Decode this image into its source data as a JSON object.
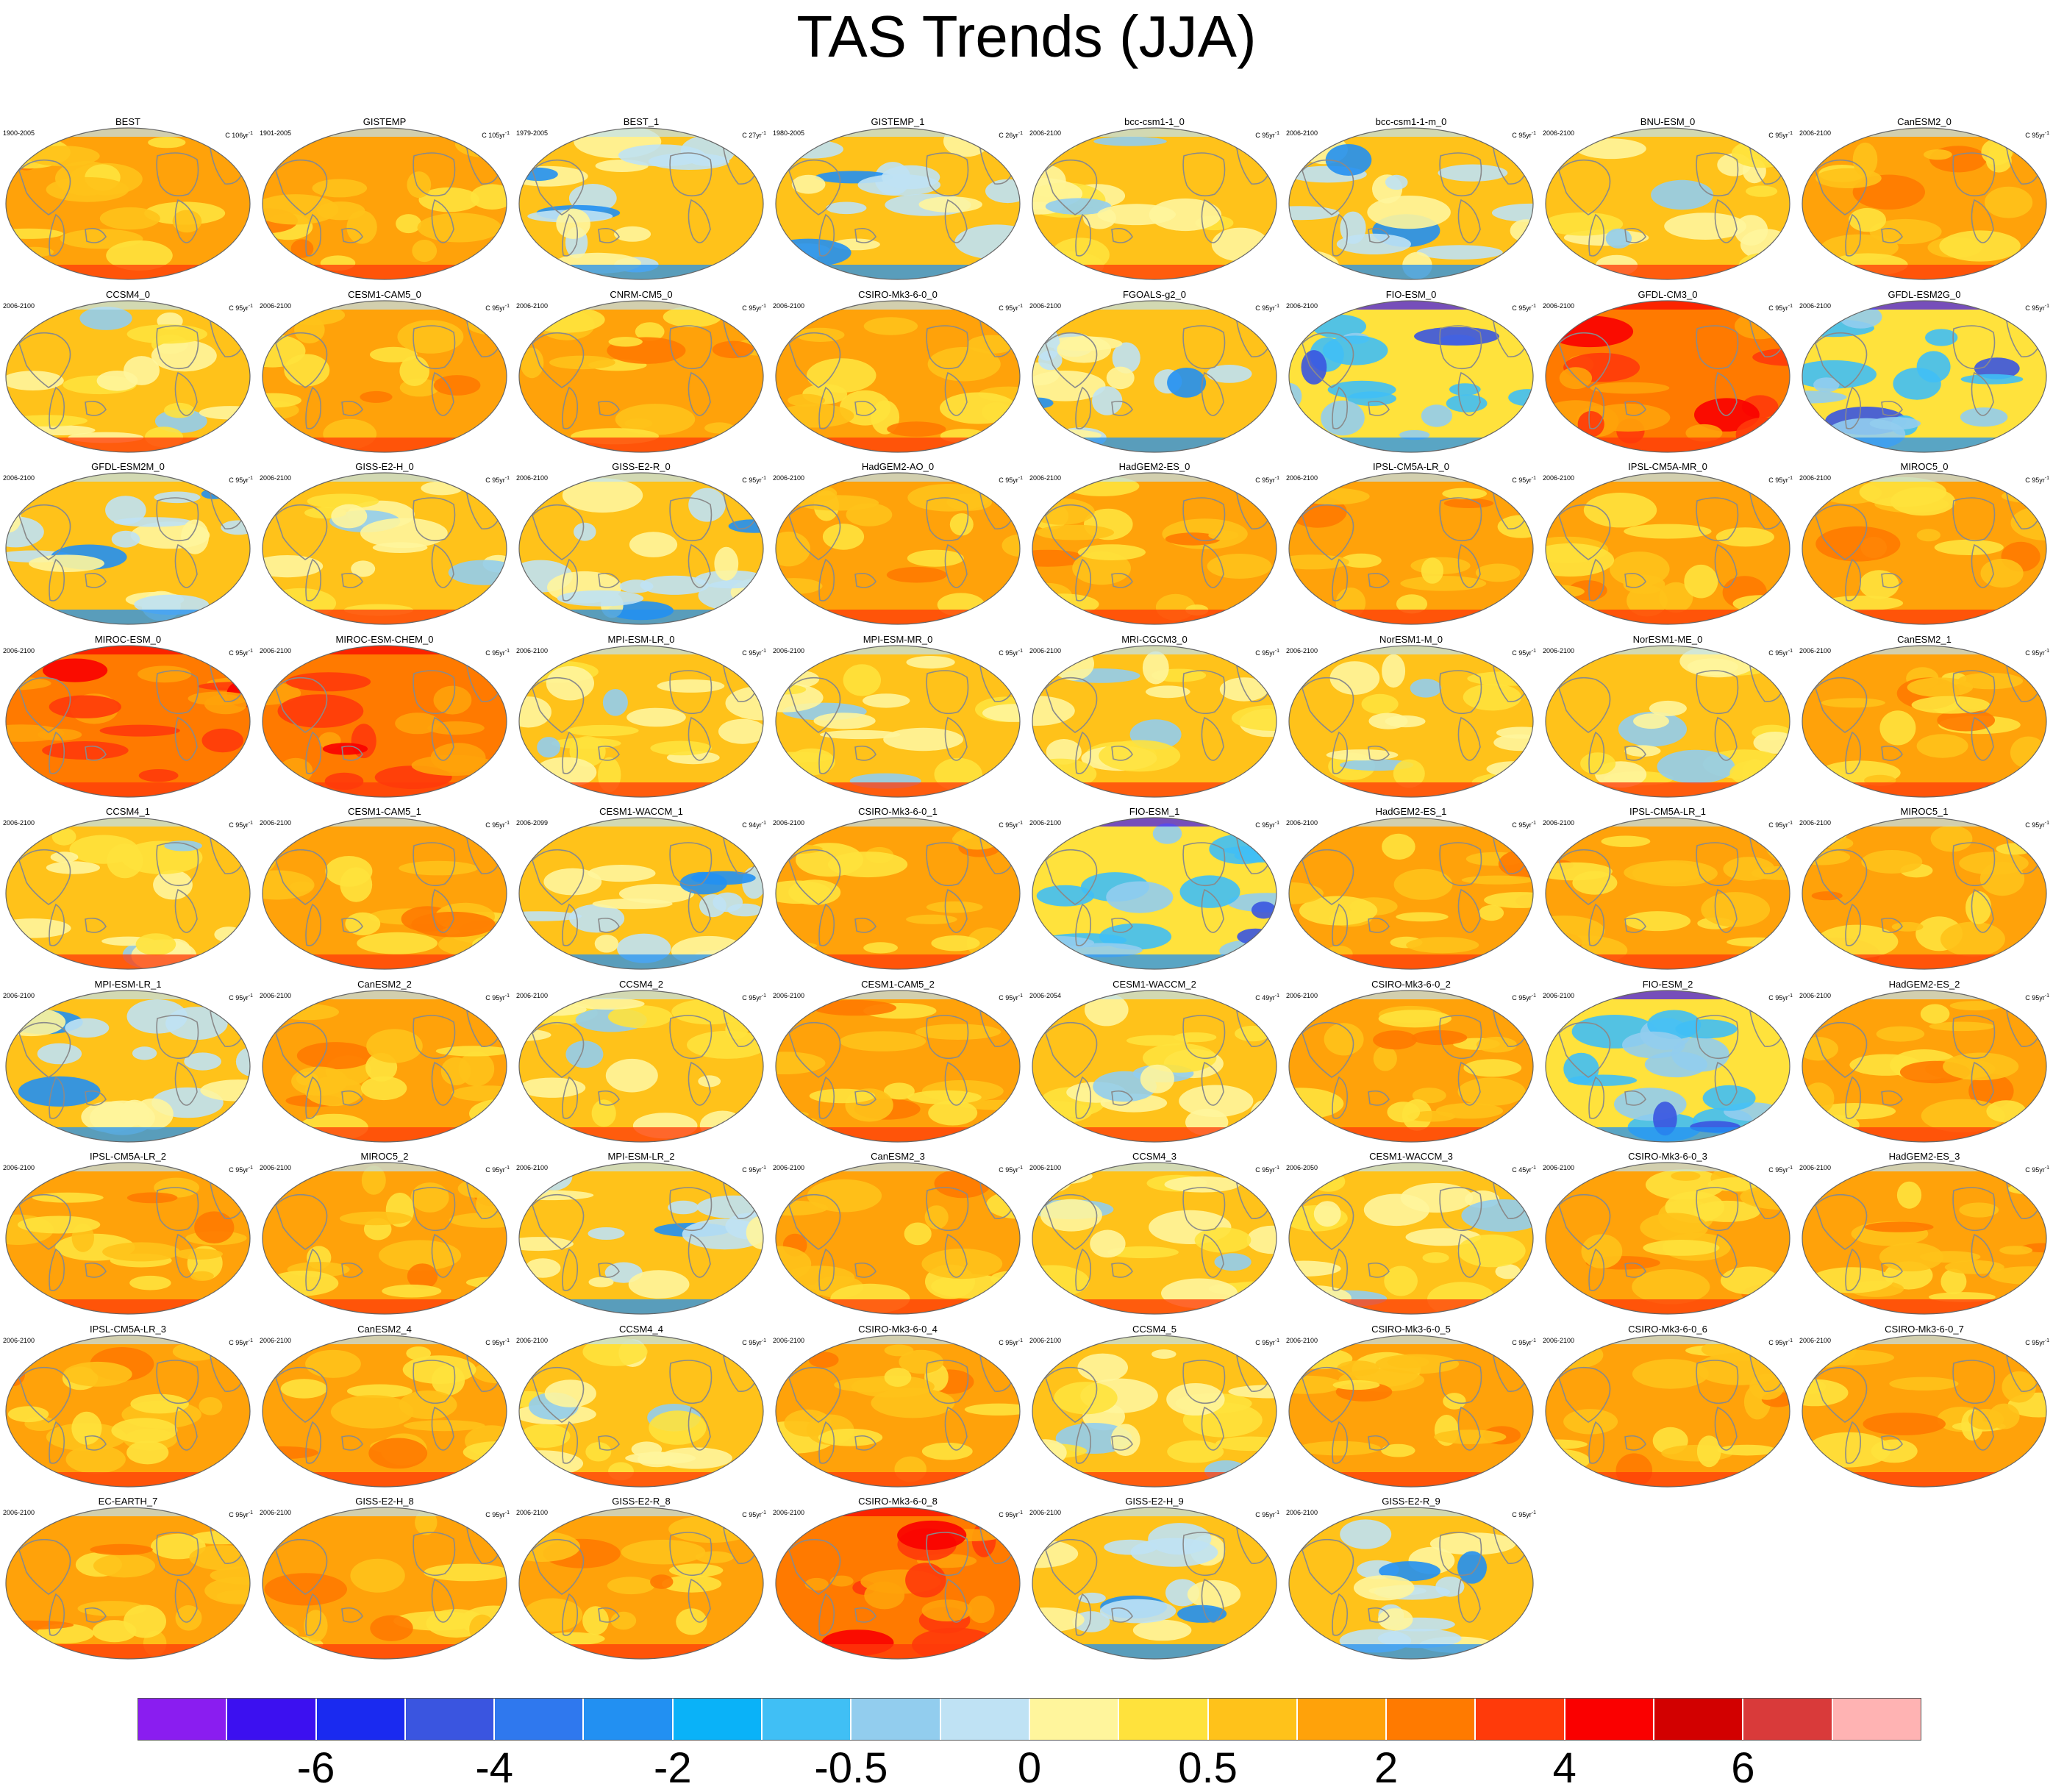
{
  "title": "TAS Trends (JJA)",
  "colors": {
    "warm_base": "#ffc21a",
    "cool_base": "#bfe2f4",
    "coast": "#8a8a8a",
    "outline": "#666666"
  },
  "panels": [
    {
      "name": "BEST",
      "years": "1900-2005",
      "trend_prefix": "C 106yr",
      "trend_sup": "-1",
      "pattern": "obs"
    },
    {
      "name": "GISTEMP",
      "years": "1901-2005",
      "trend_prefix": "C 105yr",
      "trend_sup": "-1",
      "pattern": "obs"
    },
    {
      "name": "BEST_1",
      "years": "1979-2005",
      "trend_prefix": "C 27yr",
      "trend_sup": "-1",
      "pattern": "mixed"
    },
    {
      "name": "GISTEMP_1",
      "years": "1980-2005",
      "trend_prefix": "C 26yr",
      "trend_sup": "-1",
      "pattern": "mixed"
    },
    {
      "name": "bcc-csm1-1_0",
      "years": "2006-2100",
      "trend_prefix": "C 95yr",
      "trend_sup": "-1",
      "pattern": "mild"
    },
    {
      "name": "bcc-csm1-1-m_0",
      "years": "2006-2100",
      "trend_prefix": "C 95yr",
      "trend_sup": "-1",
      "pattern": "mixed"
    },
    {
      "name": "BNU-ESM_0",
      "years": "2006-2100",
      "trend_prefix": "C 95yr",
      "trend_sup": "-1",
      "pattern": "mild"
    },
    {
      "name": "CanESM2_0",
      "years": "2006-2100",
      "trend_prefix": "C 95yr",
      "trend_sup": "-1",
      "pattern": "warm"
    },
    {
      "name": "CCSM4_0",
      "years": "2006-2100",
      "trend_prefix": "C 95yr",
      "trend_sup": "-1",
      "pattern": "mild"
    },
    {
      "name": "CESM1-CAM5_0",
      "years": "2006-2100",
      "trend_prefix": "C 95yr",
      "trend_sup": "-1",
      "pattern": "warm"
    },
    {
      "name": "CNRM-CM5_0",
      "years": "2006-2100",
      "trend_prefix": "C 95yr",
      "trend_sup": "-1",
      "pattern": "warm"
    },
    {
      "name": "CSIRO-Mk3-6-0_0",
      "years": "2006-2100",
      "trend_prefix": "C 95yr",
      "trend_sup": "-1",
      "pattern": "warm"
    },
    {
      "name": "FGOALS-g2_0",
      "years": "2006-2100",
      "trend_prefix": "C 95yr",
      "trend_sup": "-1",
      "pattern": "mixed"
    },
    {
      "name": "FIO-ESM_0",
      "years": "2006-2100",
      "trend_prefix": "C 95yr",
      "trend_sup": "-1",
      "pattern": "cool"
    },
    {
      "name": "GFDL-CM3_0",
      "years": "2006-2100",
      "trend_prefix": "C 95yr",
      "trend_sup": "-1",
      "pattern": "hot"
    },
    {
      "name": "GFDL-ESM2G_0",
      "years": "2006-2100",
      "trend_prefix": "C 95yr",
      "trend_sup": "-1",
      "pattern": "cool"
    },
    {
      "name": "GFDL-ESM2M_0",
      "years": "2006-2100",
      "trend_prefix": "C 95yr",
      "trend_sup": "-1",
      "pattern": "mixed"
    },
    {
      "name": "GISS-E2-H_0",
      "years": "2006-2100",
      "trend_prefix": "C 95yr",
      "trend_sup": "-1",
      "pattern": "mild"
    },
    {
      "name": "GISS-E2-R_0",
      "years": "2006-2100",
      "trend_prefix": "C 95yr",
      "trend_sup": "-1",
      "pattern": "mixed"
    },
    {
      "name": "HadGEM2-AO_0",
      "years": "2006-2100",
      "trend_prefix": "C 95yr",
      "trend_sup": "-1",
      "pattern": "warm"
    },
    {
      "name": "HadGEM2-ES_0",
      "years": "2006-2100",
      "trend_prefix": "C 95yr",
      "trend_sup": "-1",
      "pattern": "warm"
    },
    {
      "name": "IPSL-CM5A-LR_0",
      "years": "2006-2100",
      "trend_prefix": "C 95yr",
      "trend_sup": "-1",
      "pattern": "warm"
    },
    {
      "name": "IPSL-CM5A-MR_0",
      "years": "2006-2100",
      "trend_prefix": "C 95yr",
      "trend_sup": "-1",
      "pattern": "warm"
    },
    {
      "name": "MIROC5_0",
      "years": "2006-2100",
      "trend_prefix": "C 95yr",
      "trend_sup": "-1",
      "pattern": "warm"
    },
    {
      "name": "MIROC-ESM_0",
      "years": "2006-2100",
      "trend_prefix": "C 95yr",
      "trend_sup": "-1",
      "pattern": "hot"
    },
    {
      "name": "MIROC-ESM-CHEM_0",
      "years": "2006-2100",
      "trend_prefix": "C 95yr",
      "trend_sup": "-1",
      "pattern": "hot"
    },
    {
      "name": "MPI-ESM-LR_0",
      "years": "2006-2100",
      "trend_prefix": "C 95yr",
      "trend_sup": "-1",
      "pattern": "mild"
    },
    {
      "name": "MPI-ESM-MR_0",
      "years": "2006-2100",
      "trend_prefix": "C 95yr",
      "trend_sup": "-1",
      "pattern": "mild"
    },
    {
      "name": "MRI-CGCM3_0",
      "years": "2006-2100",
      "trend_prefix": "C 95yr",
      "trend_sup": "-1",
      "pattern": "mild"
    },
    {
      "name": "NorESM1-M_0",
      "years": "2006-2100",
      "trend_prefix": "C 95yr",
      "trend_sup": "-1",
      "pattern": "mild"
    },
    {
      "name": "NorESM1-ME_0",
      "years": "2006-2100",
      "trend_prefix": "C 95yr",
      "trend_sup": "-1",
      "pattern": "mild"
    },
    {
      "name": "CanESM2_1",
      "years": "2006-2100",
      "trend_prefix": "C 95yr",
      "trend_sup": "-1",
      "pattern": "warm"
    },
    {
      "name": "CCSM4_1",
      "years": "2006-2100",
      "trend_prefix": "C 95yr",
      "trend_sup": "-1",
      "pattern": "mild"
    },
    {
      "name": "CESM1-CAM5_1",
      "years": "2006-2100",
      "trend_prefix": "C 95yr",
      "trend_sup": "-1",
      "pattern": "warm"
    },
    {
      "name": "CESM1-WACCM_1",
      "years": "2006-2099",
      "trend_prefix": "C 94yr",
      "trend_sup": "-1",
      "pattern": "mixed"
    },
    {
      "name": "CSIRO-Mk3-6-0_1",
      "years": "2006-2100",
      "trend_prefix": "C 95yr",
      "trend_sup": "-1",
      "pattern": "warm"
    },
    {
      "name": "FIO-ESM_1",
      "years": "2006-2100",
      "trend_prefix": "C 95yr",
      "trend_sup": "-1",
      "pattern": "cool"
    },
    {
      "name": "HadGEM2-ES_1",
      "years": "2006-2100",
      "trend_prefix": "C 95yr",
      "trend_sup": "-1",
      "pattern": "warm"
    },
    {
      "name": "IPSL-CM5A-LR_1",
      "years": "2006-2100",
      "trend_prefix": "C 95yr",
      "trend_sup": "-1",
      "pattern": "warm"
    },
    {
      "name": "MIROC5_1",
      "years": "2006-2100",
      "trend_prefix": "C 95yr",
      "trend_sup": "-1",
      "pattern": "warm"
    },
    {
      "name": "MPI-ESM-LR_1",
      "years": "2006-2100",
      "trend_prefix": "C 95yr",
      "trend_sup": "-1",
      "pattern": "mixed"
    },
    {
      "name": "CanESM2_2",
      "years": "2006-2100",
      "trend_prefix": "C 95yr",
      "trend_sup": "-1",
      "pattern": "warm"
    },
    {
      "name": "CCSM4_2",
      "years": "2006-2100",
      "trend_prefix": "C 95yr",
      "trend_sup": "-1",
      "pattern": "mild"
    },
    {
      "name": "CESM1-CAM5_2",
      "years": "2006-2100",
      "trend_prefix": "C 95yr",
      "trend_sup": "-1",
      "pattern": "warm"
    },
    {
      "name": "CESM1-WACCM_2",
      "years": "2006-2054",
      "trend_prefix": "C 49yr",
      "trend_sup": "-1",
      "pattern": "mild"
    },
    {
      "name": "CSIRO-Mk3-6-0_2",
      "years": "2006-2100",
      "trend_prefix": "C 95yr",
      "trend_sup": "-1",
      "pattern": "warm"
    },
    {
      "name": "FIO-ESM_2",
      "years": "2006-2100",
      "trend_prefix": "C 95yr",
      "trend_sup": "-1",
      "pattern": "cool"
    },
    {
      "name": "HadGEM2-ES_2",
      "years": "2006-2100",
      "trend_prefix": "C 95yr",
      "trend_sup": "-1",
      "pattern": "warm"
    },
    {
      "name": "IPSL-CM5A-LR_2",
      "years": "2006-2100",
      "trend_prefix": "C 95yr",
      "trend_sup": "-1",
      "pattern": "warm"
    },
    {
      "name": "MIROC5_2",
      "years": "2006-2100",
      "trend_prefix": "C 95yr",
      "trend_sup": "-1",
      "pattern": "warm"
    },
    {
      "name": "MPI-ESM-LR_2",
      "years": "2006-2100",
      "trend_prefix": "C 95yr",
      "trend_sup": "-1",
      "pattern": "mixed"
    },
    {
      "name": "CanESM2_3",
      "years": "2006-2100",
      "trend_prefix": "C 95yr",
      "trend_sup": "-1",
      "pattern": "warm"
    },
    {
      "name": "CCSM4_3",
      "years": "2006-2100",
      "trend_prefix": "C 95yr",
      "trend_sup": "-1",
      "pattern": "mild"
    },
    {
      "name": "CESM1-WACCM_3",
      "years": "2006-2050",
      "trend_prefix": "C 45yr",
      "trend_sup": "-1",
      "pattern": "mild"
    },
    {
      "name": "CSIRO-Mk3-6-0_3",
      "years": "2006-2100",
      "trend_prefix": "C 95yr",
      "trend_sup": "-1",
      "pattern": "warm"
    },
    {
      "name": "HadGEM2-ES_3",
      "years": "2006-2100",
      "trend_prefix": "C 95yr",
      "trend_sup": "-1",
      "pattern": "warm"
    },
    {
      "name": "IPSL-CM5A-LR_3",
      "years": "2006-2100",
      "trend_prefix": "C 95yr",
      "trend_sup": "-1",
      "pattern": "warm"
    },
    {
      "name": "CanESM2_4",
      "years": "2006-2100",
      "trend_prefix": "C 95yr",
      "trend_sup": "-1",
      "pattern": "warm"
    },
    {
      "name": "CCSM4_4",
      "years": "2006-2100",
      "trend_prefix": "C 95yr",
      "trend_sup": "-1",
      "pattern": "mild"
    },
    {
      "name": "CSIRO-Mk3-6-0_4",
      "years": "2006-2100",
      "trend_prefix": "C 95yr",
      "trend_sup": "-1",
      "pattern": "warm"
    },
    {
      "name": "CCSM4_5",
      "years": "2006-2100",
      "trend_prefix": "C 95yr",
      "trend_sup": "-1",
      "pattern": "mild"
    },
    {
      "name": "CSIRO-Mk3-6-0_5",
      "years": "2006-2100",
      "trend_prefix": "C 95yr",
      "trend_sup": "-1",
      "pattern": "warm"
    },
    {
      "name": "CSIRO-Mk3-6-0_6",
      "years": "2006-2100",
      "trend_prefix": "C 95yr",
      "trend_sup": "-1",
      "pattern": "warm"
    },
    {
      "name": "CSIRO-Mk3-6-0_7",
      "years": "2006-2100",
      "trend_prefix": "C 95yr",
      "trend_sup": "-1",
      "pattern": "warm"
    },
    {
      "name": "EC-EARTH_7",
      "years": "2006-2100",
      "trend_prefix": "C 95yr",
      "trend_sup": "-1",
      "pattern": "warm"
    },
    {
      "name": "GISS-E2-H_8",
      "years": "2006-2100",
      "trend_prefix": "C 95yr",
      "trend_sup": "-1",
      "pattern": "warm"
    },
    {
      "name": "GISS-E2-R_8",
      "years": "2006-2100",
      "trend_prefix": "C 95yr",
      "trend_sup": "-1",
      "pattern": "warm"
    },
    {
      "name": "CSIRO-Mk3-6-0_8",
      "years": "2006-2100",
      "trend_prefix": "C 95yr",
      "trend_sup": "-1",
      "pattern": "hot"
    },
    {
      "name": "GISS-E2-H_9",
      "years": "2006-2100",
      "trend_prefix": "C 95yr",
      "trend_sup": "-1",
      "pattern": "mixed"
    },
    {
      "name": "GISS-E2-R_9",
      "years": "2006-2100",
      "trend_prefix": "C 95yr",
      "trend_sup": "-1",
      "pattern": "mixed"
    }
  ],
  "colorbar": {
    "colors": [
      "#8a1df0",
      "#3c10f0",
      "#1a2af0",
      "#3a55e0",
      "#2f78ee",
      "#2290f2",
      "#0ab2f8",
      "#40bff5",
      "#92cdee",
      "#bfe2f4",
      "#fff59c",
      "#ffe23c",
      "#ffc21a",
      "#ffa20a",
      "#ff7a00",
      "#ff3a0a",
      "#fa0000",
      "#d20000",
      "#d93a3a",
      "#ffb3b3"
    ],
    "labels": [
      {
        "text": "-6",
        "boundary": 2
      },
      {
        "text": "-4",
        "boundary": 4
      },
      {
        "text": "-2",
        "boundary": 6
      },
      {
        "text": "-0.5",
        "boundary": 8
      },
      {
        "text": "0",
        "boundary": 10
      },
      {
        "text": "0.5",
        "boundary": 12
      },
      {
        "text": "2",
        "boundary": 14
      },
      {
        "text": "4",
        "boundary": 16
      },
      {
        "text": "6",
        "boundary": 18
      }
    ]
  }
}
